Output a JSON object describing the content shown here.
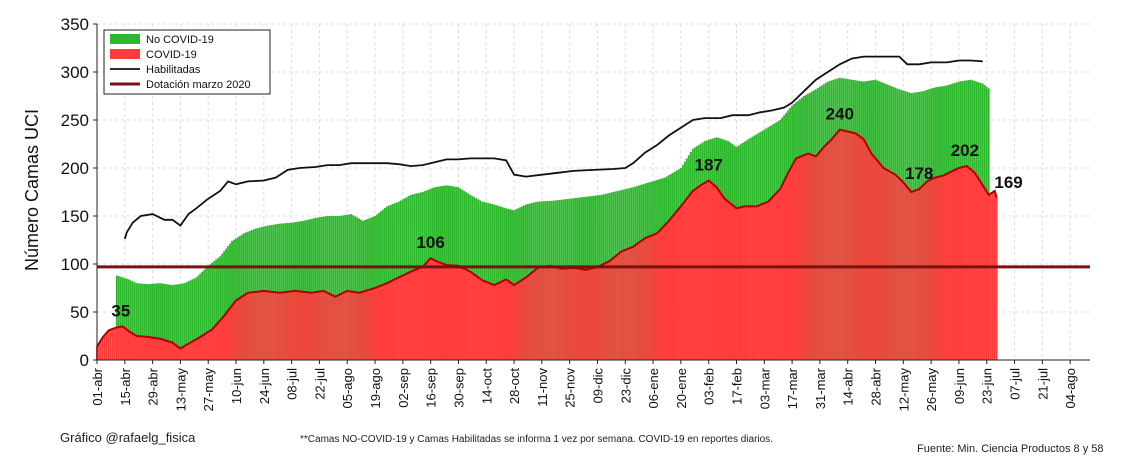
{
  "colors": {
    "covid": "#ff3c3c",
    "covid_line": "#b00000",
    "no_covid": "#2eb82e",
    "habilitadas": "#111111",
    "dotacion": "#7a1010"
  },
  "chart_data": {
    "type": "bar",
    "ylabel": "Número Camas UCI",
    "ylim": [
      0,
      350
    ],
    "yticks": [
      0,
      50,
      100,
      150,
      200,
      250,
      300,
      350
    ],
    "grid": true,
    "legend_position": "top-left",
    "x_ticks": [
      "01-abr",
      "15-abr",
      "29-abr",
      "13-may",
      "27-may",
      "10-jun",
      "24-jun",
      "08-jul",
      "22-jul",
      "05-ago",
      "19-ago",
      "02-sep",
      "16-sep",
      "30-sep",
      "14-oct",
      "28-oct",
      "11-nov",
      "25-nov",
      "09-dic",
      "23-dic",
      "06-ene",
      "20-ene",
      "03-feb",
      "17-feb",
      "03-mar",
      "17-mar",
      "31-mar",
      "14-abr",
      "28-abr",
      "12-may",
      "26-may",
      "09-jun",
      "23-jun",
      "07-jul",
      "21-jul",
      "04-ago"
    ],
    "x_tick_days": [
      0,
      14,
      28,
      42,
      56,
      70,
      84,
      98,
      112,
      126,
      140,
      154,
      168,
      182,
      196,
      210,
      224,
      238,
      252,
      266,
      280,
      294,
      308,
      322,
      336,
      350,
      364,
      378,
      392,
      406,
      420,
      434,
      448,
      462,
      476,
      490
    ],
    "x_range_days": [
      0,
      500
    ],
    "covid_series": {
      "name": "COVID-19",
      "points": [
        [
          0,
          14
        ],
        [
          3,
          24
        ],
        [
          6,
          31
        ],
        [
          10,
          34
        ],
        [
          13,
          35
        ],
        [
          16,
          30
        ],
        [
          20,
          25
        ],
        [
          26,
          24
        ],
        [
          32,
          22
        ],
        [
          38,
          18
        ],
        [
          42,
          12
        ],
        [
          46,
          17
        ],
        [
          52,
          24
        ],
        [
          58,
          32
        ],
        [
          64,
          46
        ],
        [
          70,
          62
        ],
        [
          76,
          70
        ],
        [
          84,
          72
        ],
        [
          92,
          70
        ],
        [
          100,
          72
        ],
        [
          108,
          70
        ],
        [
          114,
          72
        ],
        [
          120,
          66
        ],
        [
          126,
          72
        ],
        [
          132,
          70
        ],
        [
          140,
          75
        ],
        [
          146,
          80
        ],
        [
          152,
          86
        ],
        [
          158,
          92
        ],
        [
          164,
          97
        ],
        [
          168,
          106
        ],
        [
          172,
          102
        ],
        [
          176,
          99
        ],
        [
          182,
          98
        ],
        [
          188,
          92
        ],
        [
          194,
          83
        ],
        [
          200,
          78
        ],
        [
          206,
          84
        ],
        [
          210,
          78
        ],
        [
          216,
          86
        ],
        [
          222,
          96
        ],
        [
          228,
          98
        ],
        [
          234,
          95
        ],
        [
          240,
          96
        ],
        [
          246,
          94
        ],
        [
          252,
          97
        ],
        [
          258,
          103
        ],
        [
          264,
          113
        ],
        [
          270,
          118
        ],
        [
          276,
          127
        ],
        [
          282,
          132
        ],
        [
          288,
          145
        ],
        [
          294,
          160
        ],
        [
          300,
          176
        ],
        [
          304,
          182
        ],
        [
          308,
          187
        ],
        [
          312,
          180
        ],
        [
          316,
          168
        ],
        [
          322,
          158
        ],
        [
          326,
          160
        ],
        [
          332,
          160
        ],
        [
          338,
          165
        ],
        [
          344,
          178
        ],
        [
          348,
          195
        ],
        [
          352,
          210
        ],
        [
          358,
          215
        ],
        [
          362,
          212
        ],
        [
          366,
          222
        ],
        [
          370,
          230
        ],
        [
          374,
          240
        ],
        [
          378,
          238
        ],
        [
          382,
          236
        ],
        [
          386,
          230
        ],
        [
          390,
          215
        ],
        [
          396,
          200
        ],
        [
          402,
          193
        ],
        [
          406,
          185
        ],
        [
          410,
          175
        ],
        [
          414,
          178
        ],
        [
          418,
          186
        ],
        [
          422,
          190
        ],
        [
          426,
          192
        ],
        [
          430,
          196
        ],
        [
          434,
          200
        ],
        [
          438,
          202
        ],
        [
          442,
          195
        ],
        [
          446,
          182
        ],
        [
          449,
          172
        ],
        [
          452,
          176
        ],
        [
          453,
          169
        ]
      ]
    },
    "no_covid_series": {
      "name": "No COVID-19",
      "points": [
        [
          10,
          88
        ],
        [
          16,
          84
        ],
        [
          20,
          80
        ],
        [
          26,
          79
        ],
        [
          32,
          80
        ],
        [
          38,
          78
        ],
        [
          44,
          80
        ],
        [
          50,
          86
        ],
        [
          56,
          98
        ],
        [
          62,
          108
        ],
        [
          68,
          124
        ],
        [
          74,
          132
        ],
        [
          80,
          137
        ],
        [
          86,
          140
        ],
        [
          92,
          142
        ],
        [
          98,
          143
        ],
        [
          104,
          145
        ],
        [
          110,
          148
        ],
        [
          116,
          150
        ],
        [
          122,
          150
        ],
        [
          128,
          152
        ],
        [
          134,
          145
        ],
        [
          140,
          150
        ],
        [
          146,
          160
        ],
        [
          152,
          165
        ],
        [
          158,
          172
        ],
        [
          164,
          175
        ],
        [
          170,
          180
        ],
        [
          176,
          182
        ],
        [
          182,
          180
        ],
        [
          188,
          172
        ],
        [
          194,
          165
        ],
        [
          200,
          162
        ],
        [
          206,
          158
        ],
        [
          210,
          156
        ],
        [
          216,
          162
        ],
        [
          222,
          165
        ],
        [
          230,
          166
        ],
        [
          238,
          168
        ],
        [
          246,
          170
        ],
        [
          254,
          172
        ],
        [
          262,
          176
        ],
        [
          270,
          180
        ],
        [
          278,
          185
        ],
        [
          286,
          190
        ],
        [
          294,
          200
        ],
        [
          300,
          220
        ],
        [
          306,
          228
        ],
        [
          312,
          232
        ],
        [
          318,
          228
        ],
        [
          322,
          222
        ],
        [
          328,
          230
        ],
        [
          336,
          240
        ],
        [
          344,
          250
        ],
        [
          350,
          265
        ],
        [
          356,
          275
        ],
        [
          362,
          282
        ],
        [
          368,
          290
        ],
        [
          374,
          294
        ],
        [
          380,
          292
        ],
        [
          386,
          290
        ],
        [
          392,
          292
        ],
        [
          398,
          287
        ],
        [
          404,
          282
        ],
        [
          410,
          278
        ],
        [
          416,
          280
        ],
        [
          422,
          284
        ],
        [
          428,
          286
        ],
        [
          434,
          290
        ],
        [
          440,
          292
        ],
        [
          446,
          288
        ],
        [
          449,
          283
        ]
      ]
    },
    "habilitadas_series": {
      "name": "Habilitadas",
      "points": [
        [
          14,
          126
        ],
        [
          15,
          133
        ],
        [
          18,
          143
        ],
        [
          22,
          150
        ],
        [
          28,
          152
        ],
        [
          34,
          146
        ],
        [
          38,
          146
        ],
        [
          42,
          140
        ],
        [
          46,
          152
        ],
        [
          50,
          158
        ],
        [
          56,
          168
        ],
        [
          62,
          176
        ],
        [
          66,
          186
        ],
        [
          70,
          183
        ],
        [
          76,
          186
        ],
        [
          84,
          187
        ],
        [
          90,
          190
        ],
        [
          96,
          198
        ],
        [
          102,
          200
        ],
        [
          110,
          201
        ],
        [
          116,
          203
        ],
        [
          122,
          203
        ],
        [
          128,
          205
        ],
        [
          134,
          205
        ],
        [
          140,
          205
        ],
        [
          146,
          205
        ],
        [
          152,
          204
        ],
        [
          158,
          202
        ],
        [
          164,
          203
        ],
        [
          170,
          206
        ],
        [
          176,
          209
        ],
        [
          182,
          209
        ],
        [
          188,
          210
        ],
        [
          194,
          210
        ],
        [
          200,
          210
        ],
        [
          206,
          208
        ],
        [
          210,
          193
        ],
        [
          216,
          191
        ],
        [
          224,
          193
        ],
        [
          232,
          195
        ],
        [
          240,
          197
        ],
        [
          250,
          198
        ],
        [
          260,
          199
        ],
        [
          266,
          200
        ],
        [
          270,
          205
        ],
        [
          276,
          216
        ],
        [
          282,
          224
        ],
        [
          288,
          234
        ],
        [
          294,
          242
        ],
        [
          300,
          250
        ],
        [
          306,
          252
        ],
        [
          314,
          252
        ],
        [
          320,
          255
        ],
        [
          328,
          255
        ],
        [
          334,
          258
        ],
        [
          340,
          260
        ],
        [
          346,
          263
        ],
        [
          350,
          268
        ],
        [
          356,
          280
        ],
        [
          362,
          292
        ],
        [
          368,
          300
        ],
        [
          374,
          308
        ],
        [
          380,
          314
        ],
        [
          386,
          316
        ],
        [
          392,
          316
        ],
        [
          398,
          316
        ],
        [
          404,
          316
        ],
        [
          408,
          308
        ],
        [
          414,
          308
        ],
        [
          420,
          310
        ],
        [
          428,
          310
        ],
        [
          434,
          312
        ],
        [
          440,
          312
        ],
        [
          446,
          311
        ]
      ]
    },
    "dotacion_series": {
      "name": "Dotación marzo 2020",
      "value": 97
    },
    "annotations": [
      {
        "day": 12,
        "value": 35,
        "label": "35"
      },
      {
        "day": 168,
        "value": 106,
        "label": "106"
      },
      {
        "day": 308,
        "value": 187,
        "label": "187"
      },
      {
        "day": 374,
        "value": 240,
        "label": "240"
      },
      {
        "day": 414,
        "value": 178,
        "label": "178"
      },
      {
        "day": 437,
        "value": 202,
        "label": "202"
      },
      {
        "day": 459,
        "value": 169,
        "label": "169"
      }
    ]
  },
  "footer": {
    "credit": "Gráfico @rafaelg_fisica",
    "note": "**Camas NO-COVID-19 y Camas Habilitadas se informa 1 vez por semana. COVID-19 en reportes diarios.",
    "source": "Fuente: Min. Ciencia Productos 8 y 58"
  }
}
